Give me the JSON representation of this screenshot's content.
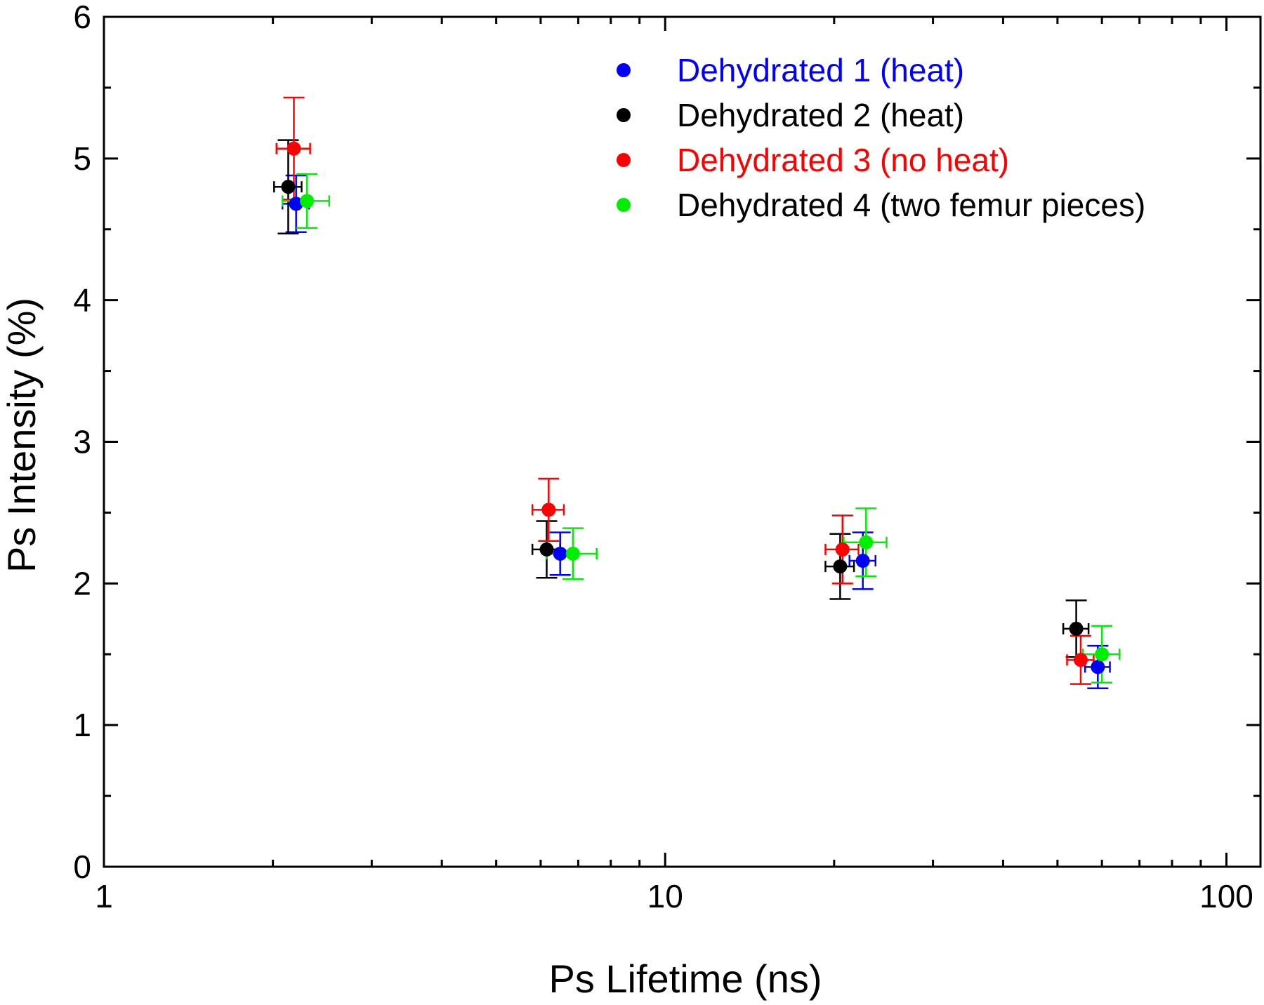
{
  "chart_data": {
    "type": "scatter",
    "xlabel": "Ps Lifetime (ns)",
    "ylabel": "Ps Intensity (%)",
    "xscale": "log",
    "xlim": [
      1,
      115
    ],
    "ylim": [
      0,
      6
    ],
    "xticks": [
      1,
      10,
      100
    ],
    "xtick_labels": [
      "1",
      "10",
      "100"
    ],
    "yticks": [
      0,
      1,
      2,
      3,
      4,
      5,
      6
    ],
    "ytick_labels": [
      "0",
      "1",
      "2",
      "3",
      "4",
      "5",
      "6"
    ],
    "grid": false,
    "legend": "top-right",
    "series": [
      {
        "name": "Dehydrated 1 (heat)",
        "color": "#0000ff",
        "label_color": "#0000ff",
        "points": [
          {
            "x": 2.2,
            "y": 4.68,
            "xerr": 0.12,
            "yerr": 0.2
          },
          {
            "x": 6.5,
            "y": 2.21,
            "xerr": 0.35,
            "yerr": 0.15
          },
          {
            "x": 22.5,
            "y": 2.16,
            "xerr": 1.2,
            "yerr": 0.2
          },
          {
            "x": 59,
            "y": 1.41,
            "xerr": 3,
            "yerr": 0.15
          }
        ]
      },
      {
        "name": "Dehydrated 2 (heat)",
        "color": "#000000",
        "label_color": "#000000",
        "points": [
          {
            "x": 2.13,
            "y": 4.8,
            "xerr": 0.12,
            "yerr": 0.33
          },
          {
            "x": 6.15,
            "y": 2.24,
            "xerr": 0.35,
            "yerr": 0.2
          },
          {
            "x": 20.5,
            "y": 2.12,
            "xerr": 1.2,
            "yerr": 0.23
          },
          {
            "x": 54,
            "y": 1.68,
            "xerr": 2.8,
            "yerr": 0.2
          }
        ]
      },
      {
        "name": "Dehydrated 3 (no heat)",
        "color": "#ff0000",
        "label_color": "#ff0000",
        "points": [
          {
            "x": 2.18,
            "y": 5.07,
            "xerr": 0.15,
            "yerr": 0.36
          },
          {
            "x": 6.2,
            "y": 2.52,
            "xerr": 0.4,
            "yerr": 0.22
          },
          {
            "x": 20.7,
            "y": 2.24,
            "xerr": 1.4,
            "yerr": 0.24
          },
          {
            "x": 55,
            "y": 1.46,
            "xerr": 3,
            "yerr": 0.17
          }
        ]
      },
      {
        "name": "Dehydrated 4 (two femur pieces)",
        "color": "#00ee00",
        "label_color": "#000000",
        "points": [
          {
            "x": 2.3,
            "y": 4.7,
            "xerr": 0.22,
            "yerr": 0.19
          },
          {
            "x": 6.85,
            "y": 2.21,
            "xerr": 0.7,
            "yerr": 0.18
          },
          {
            "x": 22.8,
            "y": 2.29,
            "xerr": 2,
            "yerr": 0.24
          },
          {
            "x": 60,
            "y": 1.5,
            "xerr": 4.5,
            "yerr": 0.2
          }
        ]
      }
    ]
  }
}
